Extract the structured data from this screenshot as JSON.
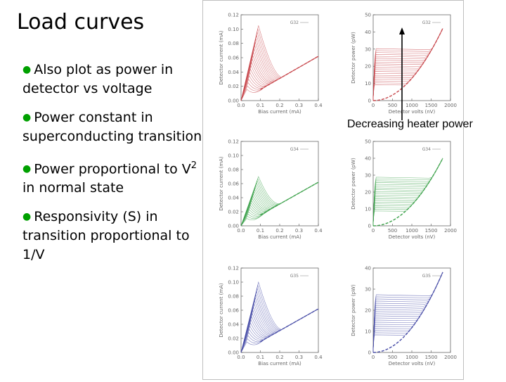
{
  "title": "Load curves",
  "bullets": [
    {
      "text": "Also plot as power in detector vs voltage"
    },
    {
      "text": "Power constant in superconducting transition"
    },
    {
      "pre": "Power proportional to V",
      "sup": "2",
      "post": " in normal state"
    },
    {
      "text": "Responsivity (S)  in transition proportional to 1/V"
    }
  ],
  "annotation": "Decreasing heater power",
  "colors": {
    "bullet": "#00a000",
    "red": "#c8484d",
    "green": "#3fa34d",
    "blue": "#4a4fa8"
  },
  "chart_data": [
    {
      "type": "line",
      "id": "current-G32",
      "legend": "G32",
      "color": "#c8484d",
      "xlabel": "Bias current (mA)",
      "ylabel": "Detector current (mA)",
      "x_ticks": [
        "0.0",
        "0.1",
        "0.2",
        "0.3",
        "0.4"
      ],
      "y_ticks": [
        "0.00",
        "0.02",
        "0.04",
        "0.06",
        "0.08",
        "0.10",
        "0.12"
      ],
      "xlim": [
        0,
        0.4
      ],
      "ylim": [
        0,
        0.12
      ],
      "peak": 0.105
    },
    {
      "type": "line",
      "id": "power-G32",
      "legend": "G32",
      "color": "#c8484d",
      "xlabel": "Detector volts (nV)",
      "ylabel": "Detector power (pW)",
      "x_ticks": [
        "0",
        "500",
        "1000",
        "1500",
        "2000"
      ],
      "y_ticks": [
        "0",
        "10",
        "20",
        "30",
        "40",
        "50"
      ],
      "xlim": [
        0,
        2000
      ],
      "ylim": [
        0,
        50
      ],
      "pmax": 42
    },
    {
      "type": "line",
      "id": "current-G34",
      "legend": "G34",
      "color": "#3fa34d",
      "xlabel": "Bias current (mA)",
      "ylabel": "Detector current (mA)",
      "x_ticks": [
        "0.0",
        "0.1",
        "0.2",
        "0.3",
        "0.4"
      ],
      "y_ticks": [
        "0.00",
        "0.02",
        "0.04",
        "0.06",
        "0.08",
        "0.10",
        "0.12"
      ],
      "xlim": [
        0,
        0.4
      ],
      "ylim": [
        0,
        0.12
      ],
      "peak": 0.07
    },
    {
      "type": "line",
      "id": "power-G34",
      "legend": "G34",
      "color": "#3fa34d",
      "xlabel": "Detector volts (nV)",
      "ylabel": "Detector power (pW)",
      "x_ticks": [
        "0",
        "500",
        "1000",
        "1500",
        "2000"
      ],
      "y_ticks": [
        "0",
        "10",
        "20",
        "30",
        "40",
        "50"
      ],
      "xlim": [
        0,
        2000
      ],
      "ylim": [
        0,
        50
      ],
      "pmax": 40
    },
    {
      "type": "line",
      "id": "current-G35",
      "legend": "G35",
      "color": "#4a4fa8",
      "xlabel": "Bias current (mA)",
      "ylabel": "Detector current (mA)",
      "x_ticks": [
        "0.0",
        "0.1",
        "0.2",
        "0.3",
        "0.4"
      ],
      "y_ticks": [
        "0.00",
        "0.02",
        "0.04",
        "0.06",
        "0.08",
        "0.10",
        "0.12"
      ],
      "xlim": [
        0,
        0.4
      ],
      "ylim": [
        0,
        0.12
      ],
      "peak": 0.1
    },
    {
      "type": "line",
      "id": "power-G35",
      "legend": "G35",
      "color": "#4a4fa8",
      "xlabel": "Detector volts (nV)",
      "ylabel": "Detector power (pW)",
      "x_ticks": [
        "0",
        "500",
        "1000",
        "1500",
        "2000"
      ],
      "y_ticks": [
        "0",
        "10",
        "20",
        "30",
        "40"
      ],
      "xlim": [
        0,
        2000
      ],
      "ylim": [
        0,
        40
      ],
      "pmax": 38
    }
  ]
}
